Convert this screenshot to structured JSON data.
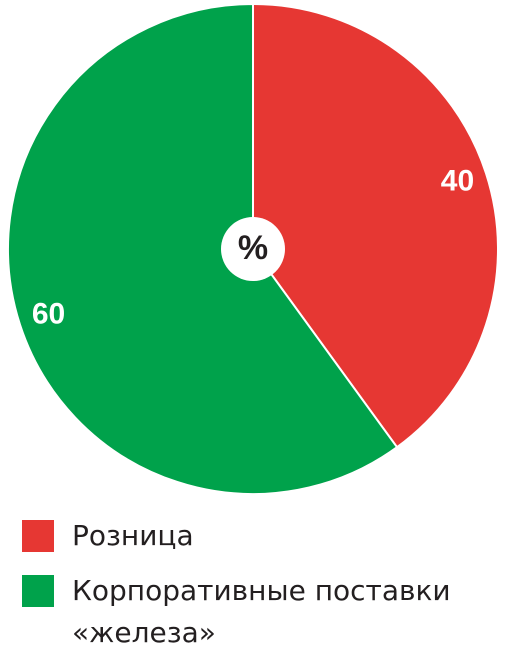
{
  "chart_data": {
    "type": "pie",
    "categories": [
      "Розница",
      "Корпоративные поставки «железа»"
    ],
    "values": [
      40,
      60
    ],
    "colors": [
      "#e63733",
      "#00a24b"
    ],
    "center_label": "%",
    "start_angle": 0,
    "direction": "clockwise"
  }
}
